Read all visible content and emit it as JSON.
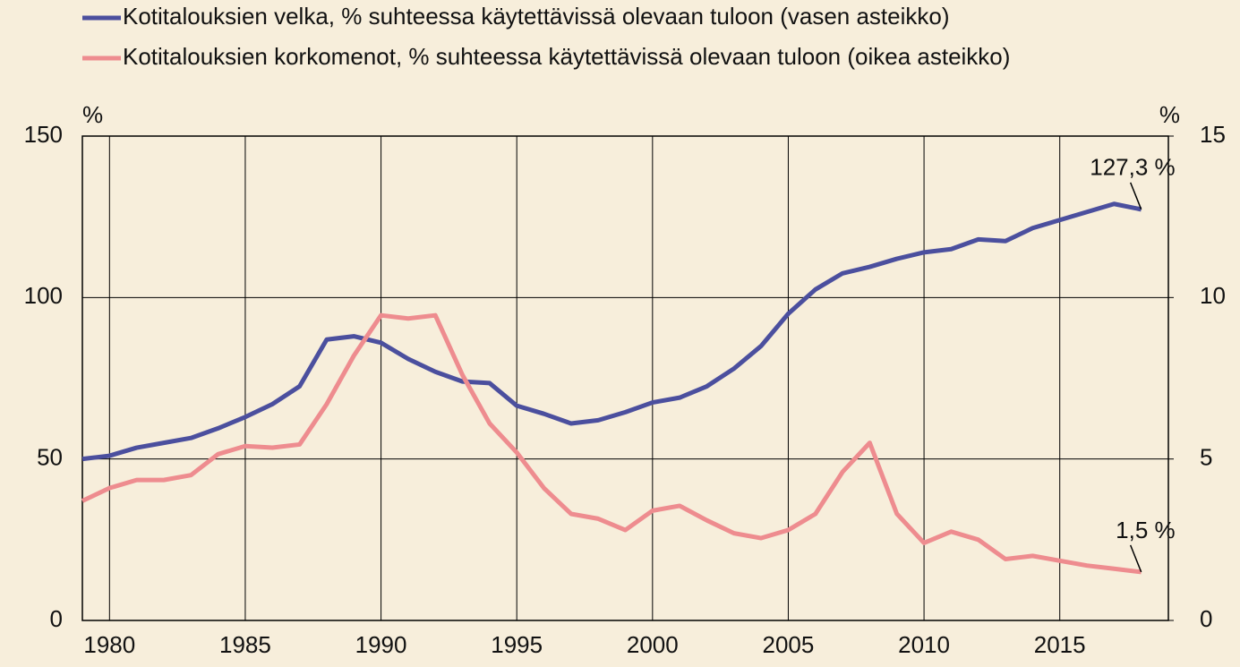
{
  "chart_data": {
    "type": "line",
    "x": [
      1979,
      1980,
      1981,
      1982,
      1983,
      1984,
      1985,
      1986,
      1987,
      1988,
      1989,
      1990,
      1991,
      1992,
      1993,
      1994,
      1995,
      1996,
      1997,
      1998,
      1999,
      2000,
      2001,
      2002,
      2003,
      2004,
      2005,
      2006,
      2007,
      2008,
      2009,
      2010,
      2011,
      2012,
      2013,
      2014,
      2015,
      2016,
      2017,
      2018
    ],
    "series": [
      {
        "name": "Kotitalouksien velka, % suhteessa käytettävissä olevaan tuloon (vasen asteikko)",
        "color": "#4b4f9e",
        "axis": "y",
        "values": [
          50,
          51,
          53.5,
          55,
          56.5,
          59.5,
          63,
          67,
          72.5,
          87,
          88,
          86,
          81,
          77,
          74,
          73.5,
          66.5,
          64,
          61,
          62,
          64.5,
          67.5,
          69,
          72.5,
          78,
          85,
          95,
          102.5,
          107.5,
          109.5,
          112,
          114,
          115,
          118,
          117.5,
          121.5,
          124,
          126.5,
          129,
          127.3
        ]
      },
      {
        "name": "Kotitalouksien korkomenot, % suhteessa käytettävissä olevaan tuloon (oikea asteikko)",
        "color": "#ee8c8f",
        "axis": "y2",
        "values": [
          3.7,
          4.1,
          4.35,
          4.35,
          4.5,
          5.15,
          5.4,
          5.35,
          5.45,
          6.7,
          8.2,
          9.45,
          9.35,
          9.45,
          7.6,
          6.1,
          5.2,
          4.1,
          3.3,
          3.15,
          2.8,
          3.4,
          3.55,
          3.1,
          2.7,
          2.55,
          2.8,
          3.3,
          4.6,
          5.5,
          3.3,
          2.4,
          2.75,
          2.5,
          1.9,
          2.0,
          1.85,
          1.7,
          1.6,
          1.5
        ]
      }
    ],
    "annotations": [
      "127,3 %",
      "1,5 %"
    ],
    "y_unit": "%",
    "y2_unit": "%",
    "xlim": [
      1979,
      2019
    ],
    "xticks": [
      1980,
      1985,
      1990,
      1995,
      2000,
      2005,
      2010,
      2015
    ],
    "ylim": [
      0,
      150
    ],
    "yticks": [
      0,
      50,
      100,
      150
    ],
    "y2lim": [
      0,
      15
    ],
    "y2ticks": [
      0,
      5,
      10,
      15
    ],
    "grid": true
  }
}
